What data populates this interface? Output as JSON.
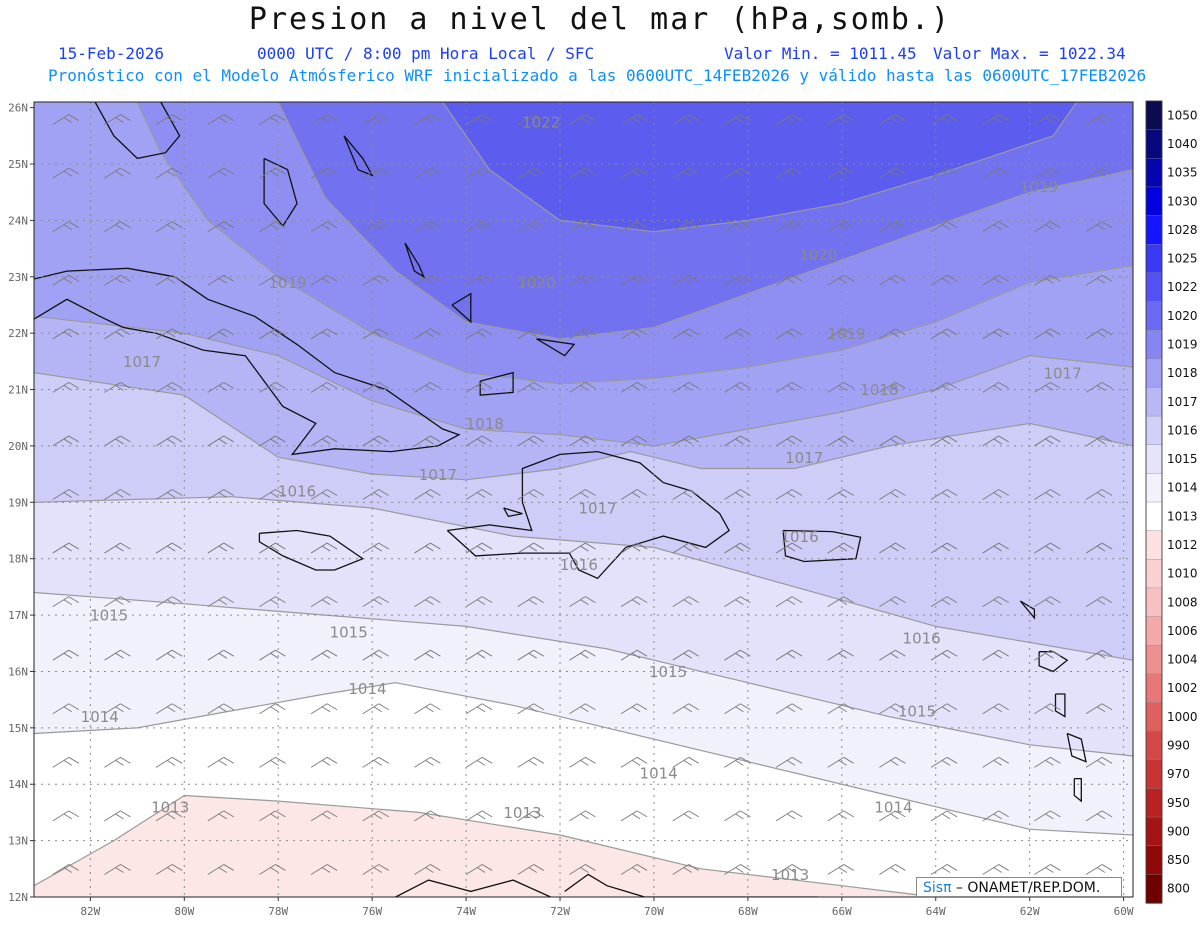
{
  "header": {
    "title": "Presion a nivel del mar (hPa,somb.)",
    "date": "15-Feb-2026",
    "time": "0000 UTC / 8:00 pm Hora Local / SFC",
    "min": "Valor Min. = 1011.45",
    "max": "Valor Max. = 1022.34",
    "model": "Pronóstico con el Modelo Atmósferico WRF inicializado a las 0600UTC_14FEB2026 y válido hasta las  0600UTC_17FEB2026"
  },
  "axes": {
    "lat": [
      "26N",
      "25N",
      "24N",
      "23N",
      "22N",
      "21N",
      "20N",
      "19N",
      "18N",
      "17N",
      "16N",
      "15N",
      "14N",
      "13N",
      "12N"
    ],
    "lon": [
      "82W",
      "80W",
      "78W",
      "76W",
      "74W",
      "72W",
      "70W",
      "68W",
      "66W",
      "64W",
      "62W",
      "60W"
    ]
  },
  "isobars": [
    {
      "value": "1022",
      "lon": -72.4,
      "lat": 25.65
    },
    {
      "value": "1020",
      "lon": -66.5,
      "lat": 23.3
    },
    {
      "value": "1020",
      "lon": -72.5,
      "lat": 22.8
    },
    {
      "value": "1019",
      "lon": -77.8,
      "lat": 22.8
    },
    {
      "value": "1019",
      "lon": -65.9,
      "lat": 21.9
    },
    {
      "value": "1019",
      "lon": -61.8,
      "lat": 24.5
    },
    {
      "value": "1018",
      "lon": -65.2,
      "lat": 20.9
    },
    {
      "value": "1018",
      "lon": -73.6,
      "lat": 20.3
    },
    {
      "value": "1017",
      "lon": -80.9,
      "lat": 21.4
    },
    {
      "value": "1017",
      "lon": -74.6,
      "lat": 19.4
    },
    {
      "value": "1017",
      "lon": -66.8,
      "lat": 19.7
    },
    {
      "value": "1017",
      "lon": -61.3,
      "lat": 21.2
    },
    {
      "value": "1017",
      "lon": -71.2,
      "lat": 18.8
    },
    {
      "value": "1016",
      "lon": -77.6,
      "lat": 19.1
    },
    {
      "value": "1016",
      "lon": -66.9,
      "lat": 18.3
    },
    {
      "value": "1016",
      "lon": -71.6,
      "lat": 17.8
    },
    {
      "value": "1016",
      "lon": -64.3,
      "lat": 16.5
    },
    {
      "value": "1015",
      "lon": -81.6,
      "lat": 16.9
    },
    {
      "value": "1015",
      "lon": -76.5,
      "lat": 16.6
    },
    {
      "value": "1015",
      "lon": -69.7,
      "lat": 15.9
    },
    {
      "value": "1015",
      "lon": -64.4,
      "lat": 15.2
    },
    {
      "value": "1014",
      "lon": -76.1,
      "lat": 15.6
    },
    {
      "value": "1014",
      "lon": -81.8,
      "lat": 15.1
    },
    {
      "value": "1014",
      "lon": -69.9,
      "lat": 14.1
    },
    {
      "value": "1014",
      "lon": -64.9,
      "lat": 13.5
    },
    {
      "value": "1013",
      "lon": -80.3,
      "lat": 13.5
    },
    {
      "value": "1013",
      "lon": -72.8,
      "lat": 13.4
    },
    {
      "value": "1013",
      "lon": -67.1,
      "lat": 12.3
    }
  ],
  "colorbar": {
    "levels": [
      "1050",
      "1040",
      "1035",
      "1030",
      "1028",
      "1025",
      "1022",
      "1020",
      "1019",
      "1018",
      "1017",
      "1016",
      "1015",
      "1014",
      "1013",
      "1012",
      "1010",
      "1008",
      "1006",
      "1004",
      "1002",
      "1000",
      "990",
      "970",
      "950",
      "900",
      "850",
      "800"
    ],
    "colors": [
      "#0b0b52",
      "#08087e",
      "#0505b0",
      "#0000e0",
      "#1515ff",
      "#3a3af5",
      "#5252f4",
      "#6a6af2",
      "#8686f2",
      "#a0a0f4",
      "#b8b8f6",
      "#d0d0f8",
      "#e4e4fa",
      "#f2f2fc",
      "#ffffff",
      "#fde0e0",
      "#fbd0d0",
      "#f8c0c0",
      "#f4a8a8",
      "#ef9090",
      "#e87878",
      "#e06060",
      "#d44848",
      "#c83434",
      "#b82222",
      "#a51414",
      "#8f0909",
      "#700000"
    ]
  },
  "colors": {
    "p1022": "#5c5cee",
    "p1020": "#7272f1",
    "p1019": "#8f8ff3",
    "p1018": "#a2a2f4",
    "p1017": "#b5b5f6",
    "p1016": "#cdcdf8",
    "p1015": "#e2e2fa",
    "p1014": "#f1f1fc",
    "p1013": "#ffffff",
    "p1012": "#fde6e6",
    "grid": "#8c8c8c",
    "coast": "#111111"
  },
  "credit": {
    "brand": "Sisπ",
    "text": " – ONAMET/REP.DOM."
  }
}
